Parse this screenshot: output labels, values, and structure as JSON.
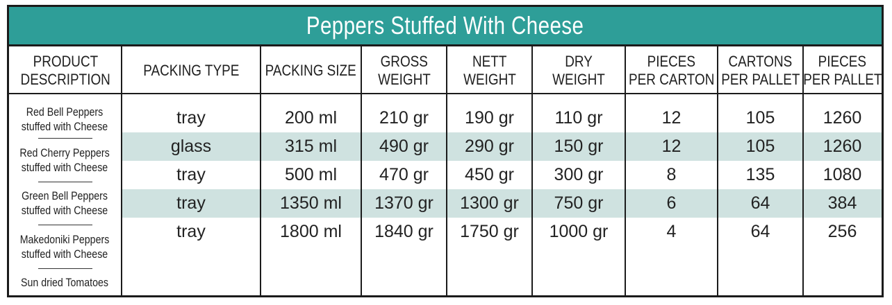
{
  "title": "Peppers Stuffed With Cheese",
  "headers": [
    [
      "PRODUCT",
      "DESCRIPTION"
    ],
    [
      "PACKING TYPE"
    ],
    [
      "PACKING SIZE"
    ],
    [
      "GROSS",
      "WEIGHT"
    ],
    [
      "NETT",
      "WEIGHT"
    ],
    [
      "DRY",
      "WEIGHT"
    ],
    [
      "PIECES",
      "PER CARTON"
    ],
    [
      "CARTONS",
      "PER PALLET"
    ],
    [
      "PIECES",
      "PER PALLET"
    ]
  ],
  "products": [
    [
      "Red Bell Peppers",
      "stuffed with Cheese"
    ],
    [
      "Red Cherry Peppers",
      "stuffed with Cheese"
    ],
    [
      "Green Bell Peppers",
      "stuffed with Cheese"
    ],
    [
      "Makedoniki Peppers",
      "stuffed with Cheese"
    ],
    [
      "Sun dried Tomatoes"
    ]
  ],
  "rows": [
    [
      "tray",
      "200 ml",
      "210 gr",
      "190 gr",
      "110 gr",
      "12",
      "105",
      "1260"
    ],
    [
      "glass",
      "315 ml",
      "490 gr",
      "290 gr",
      "150 gr",
      "12",
      "105",
      "1260"
    ],
    [
      "tray",
      "500 ml",
      "470 gr",
      "450 gr",
      "300 gr",
      "8",
      "135",
      "1080"
    ],
    [
      "tray",
      "1350 ml",
      "1370 gr",
      "1300 gr",
      "750 gr",
      "6",
      "64",
      "384"
    ],
    [
      "tray",
      "1800 ml",
      "1840 gr",
      "1750 gr",
      "1000 gr",
      "4",
      "64",
      "256"
    ]
  ],
  "colors": {
    "title_bar": "#2e9e98",
    "row_highlight": "#cfe2e0",
    "border": "#1b1b1b"
  }
}
